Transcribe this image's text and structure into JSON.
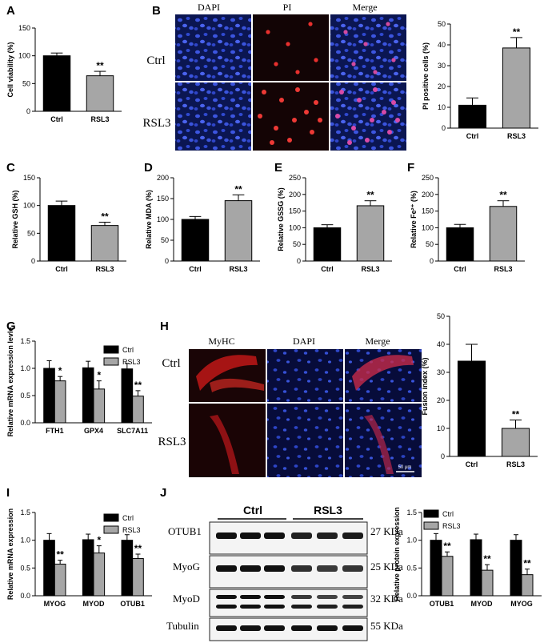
{
  "panel_letters": [
    "A",
    "B",
    "C",
    "D",
    "E",
    "F",
    "G",
    "H",
    "I",
    "J"
  ],
  "micro_B": {
    "columns": [
      "DAPI",
      "PI",
      "Merge"
    ],
    "rows": [
      "Ctrl",
      "RSL3"
    ]
  },
  "micro_H": {
    "columns": [
      "MyHC",
      "DAPI",
      "Merge"
    ],
    "rows": [
      "Ctrl",
      "RSL3"
    ],
    "scale_label": "50 μm"
  },
  "blot_J": {
    "groups": [
      "Ctrl",
      "RSL3"
    ],
    "proteins": [
      "OTUB1",
      "MyoG",
      "MyoD",
      "Tubulin"
    ],
    "sizes": [
      "27 KDa",
      "25 KDa",
      "32 KDa",
      "55 KDa"
    ]
  },
  "colors": {
    "ctrl": "#000000",
    "treated": "#a6a6a6",
    "dapi": "#1a2fa0",
    "pi": "#d0201e"
  },
  "chart_data": [
    {
      "id": "A",
      "type": "bar",
      "categories": [
        "Ctrl",
        "RSL3"
      ],
      "values": [
        100,
        64
      ],
      "errors": [
        5,
        8
      ],
      "ylabel": "Cell viability (%)",
      "ylim": [
        0,
        150
      ],
      "yticks": [
        0,
        50,
        100,
        150
      ],
      "annotations": [
        "",
        "**"
      ]
    },
    {
      "id": "B",
      "type": "bar",
      "categories": [
        "Ctrl",
        "RSL3"
      ],
      "values": [
        11,
        38.5
      ],
      "errors": [
        3.5,
        5
      ],
      "ylabel": "PI positive cells (%)",
      "ylim": [
        0,
        50
      ],
      "yticks": [
        0,
        10,
        20,
        30,
        40,
        50
      ],
      "annotations": [
        "",
        "**"
      ]
    },
    {
      "id": "C",
      "type": "bar",
      "categories": [
        "Ctrl",
        "RSL3"
      ],
      "values": [
        100,
        64
      ],
      "errors": [
        8,
        6
      ],
      "ylabel": "Relative GSH (%)",
      "ylim": [
        0,
        150
      ],
      "yticks": [
        0,
        50,
        100,
        150
      ],
      "annotations": [
        "",
        "**"
      ]
    },
    {
      "id": "D",
      "type": "bar",
      "categories": [
        "Ctrl",
        "RSL3"
      ],
      "values": [
        100,
        145
      ],
      "errors": [
        7,
        14
      ],
      "ylabel": "Relative MDA (%)",
      "ylim": [
        0,
        200
      ],
      "yticks": [
        0,
        50,
        100,
        150,
        200
      ],
      "annotations": [
        "",
        "**"
      ]
    },
    {
      "id": "E",
      "type": "bar",
      "categories": [
        "Ctrl",
        "RSL3"
      ],
      "values": [
        100,
        166
      ],
      "errors": [
        9,
        15
      ],
      "ylabel": "Relative GSSG (%)",
      "ylim": [
        0,
        250
      ],
      "yticks": [
        0,
        50,
        100,
        150,
        200,
        250
      ],
      "annotations": [
        "",
        "**"
      ]
    },
    {
      "id": "F",
      "type": "bar",
      "categories": [
        "Ctrl",
        "RSL3"
      ],
      "values": [
        100,
        164
      ],
      "errors": [
        10,
        17
      ],
      "ylabel": "Relative Fe²⁺ (%)",
      "ylim": [
        0,
        250
      ],
      "yticks": [
        0,
        50,
        100,
        150,
        200,
        250
      ],
      "annotations": [
        "",
        "**"
      ]
    },
    {
      "id": "G",
      "type": "bar",
      "categories": [
        "FTH1",
        "GPX4",
        "SLC7A11"
      ],
      "series": [
        {
          "name": "Ctrl",
          "values": [
            1.0,
            1.01,
            0.99
          ],
          "errors": [
            0.14,
            0.12,
            0.1
          ]
        },
        {
          "name": "RSL3",
          "values": [
            0.77,
            0.62,
            0.49
          ],
          "errors": [
            0.08,
            0.15,
            0.1
          ]
        }
      ],
      "annotations": [
        "*",
        "*",
        "**"
      ],
      "ylabel": "Relative mRNA expression levle",
      "ylim": [
        0,
        1.5
      ],
      "yticks": [
        "0.0",
        "0.5",
        "1.0",
        "1.5"
      ]
    },
    {
      "id": "H",
      "type": "bar",
      "categories": [
        "Ctrl",
        "RSL3"
      ],
      "values": [
        34,
        10
      ],
      "errors": [
        6,
        3
      ],
      "ylabel": "Fusion index (%)",
      "ylim": [
        0,
        50
      ],
      "yticks": [
        0,
        10,
        20,
        30,
        40,
        50
      ],
      "annotations": [
        "",
        "**"
      ]
    },
    {
      "id": "I",
      "type": "bar",
      "categories": [
        "MYOG",
        "MYOD",
        "OTUB1"
      ],
      "series": [
        {
          "name": "Ctrl",
          "values": [
            1.0,
            1.01,
            1.0
          ],
          "errors": [
            0.12,
            0.1,
            0.1
          ]
        },
        {
          "name": "RSL3",
          "values": [
            0.57,
            0.77,
            0.67
          ],
          "errors": [
            0.07,
            0.13,
            0.08
          ]
        }
      ],
      "annotations": [
        "**",
        "*",
        "**"
      ],
      "ylabel": "Relative mRNA expression",
      "ylim": [
        0,
        1.5
      ],
      "yticks": [
        "0.0",
        "0.5",
        "1.0",
        "1.5"
      ]
    },
    {
      "id": "J",
      "type": "bar",
      "categories": [
        "OTUB1",
        "MYOD",
        "MYOG"
      ],
      "series": [
        {
          "name": "Ctrl",
          "values": [
            1.0,
            1.01,
            1.0
          ],
          "errors": [
            0.12,
            0.1,
            0.1
          ]
        },
        {
          "name": "RSL3",
          "values": [
            0.71,
            0.46,
            0.38
          ],
          "errors": [
            0.08,
            0.1,
            0.1
          ]
        }
      ],
      "annotations": [
        "**",
        "**",
        "**"
      ],
      "ylabel": "Relative protein expression",
      "ylim": [
        0,
        1.5
      ],
      "yticks": [
        "0.0",
        "0.5",
        "1.0",
        "1.5"
      ]
    }
  ]
}
